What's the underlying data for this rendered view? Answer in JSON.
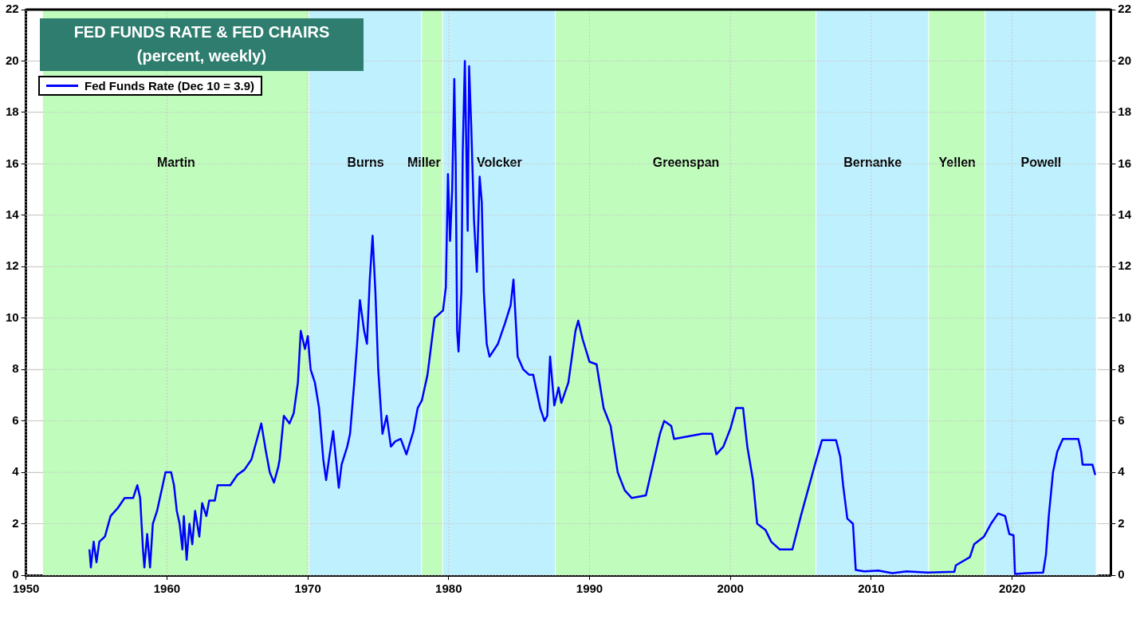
{
  "chart_data": {
    "type": "line",
    "title": "FED FUNDS RATE & FED CHAIRS",
    "subtitle": "(percent, weekly)",
    "xlim": [
      1950,
      2027
    ],
    "xticks": [
      1950,
      1960,
      1970,
      1980,
      1990,
      2000,
      2010,
      2020
    ],
    "ylim": [
      0,
      22
    ],
    "yticks": [
      0,
      2,
      4,
      6,
      8,
      10,
      12,
      14,
      16,
      18,
      20,
      22
    ],
    "y2lim": [
      0,
      22
    ],
    "y2ticks": [
      0,
      2,
      4,
      6,
      8,
      10,
      12,
      14,
      16,
      18,
      20,
      22
    ],
    "grid": true,
    "legend": "top left",
    "marker": "none",
    "line_style": "solid",
    "bands": [
      {
        "axis": "x",
        "from": 1951.2,
        "to": 1970.1,
        "color": "#c0fcbc",
        "label": "Martin"
      },
      {
        "axis": "x",
        "from": 1970.1,
        "to": 1978.1,
        "color": "#bff0fe",
        "label": "Burns"
      },
      {
        "axis": "x",
        "from": 1978.1,
        "to": 1979.6,
        "color": "#c0fcbc",
        "label": "Miller"
      },
      {
        "axis": "x",
        "from": 1979.6,
        "to": 1987.6,
        "color": "#bff0fe",
        "label": "Volcker"
      },
      {
        "axis": "x",
        "from": 1987.6,
        "to": 2006.1,
        "color": "#c0fcbc",
        "label": "Greenspan"
      },
      {
        "axis": "x",
        "from": 2006.1,
        "to": 2014.1,
        "color": "#bff0fe",
        "label": "Bernanke"
      },
      {
        "axis": "x",
        "from": 2014.1,
        "to": 2018.1,
        "color": "#c0fcbc",
        "label": "Yellen"
      },
      {
        "axis": "x",
        "from": 2018.1,
        "to": 2026.0,
        "color": "#bff0fe",
        "label": "Powell"
      }
    ],
    "series": [
      {
        "name": "Fed Funds Rate (Dec 10 = 3.9)",
        "color": "#0000ff",
        "x": [
          1954.5,
          1954.6,
          1954.8,
          1955.0,
          1955.2,
          1955.6,
          1956.0,
          1956.5,
          1957.0,
          1957.6,
          1957.9,
          1958.1,
          1958.3,
          1958.4,
          1958.6,
          1958.8,
          1959.0,
          1959.3,
          1959.7,
          1959.9,
          1960.3,
          1960.5,
          1960.7,
          1960.9,
          1961.1,
          1961.2,
          1961.4,
          1961.6,
          1961.8,
          1962.0,
          1962.3,
          1962.5,
          1962.8,
          1963.0,
          1963.4,
          1963.6,
          1964.5,
          1965.0,
          1965.5,
          1966.0,
          1966.5,
          1966.7,
          1967.0,
          1967.3,
          1967.6,
          1967.9,
          1968.0,
          1968.3,
          1968.7,
          1969.0,
          1969.3,
          1969.5,
          1969.8,
          1970.0,
          1970.2,
          1970.5,
          1970.8,
          1971.1,
          1971.3,
          1971.5,
          1971.8,
          1972.0,
          1972.2,
          1972.4,
          1972.8,
          1973.0,
          1973.3,
          1973.5,
          1973.7,
          1974.0,
          1974.2,
          1974.4,
          1974.6,
          1974.8,
          1975.0,
          1975.3,
          1975.6,
          1975.9,
          1976.2,
          1976.6,
          1977.0,
          1977.5,
          1977.8,
          1978.1,
          1978.5,
          1979.0,
          1979.6,
          1979.8,
          1979.95,
          1980.1,
          1980.25,
          1980.4,
          1980.5,
          1980.6,
          1980.7,
          1980.9,
          1981.0,
          1981.15,
          1981.3,
          1981.35,
          1981.45,
          1981.6,
          1981.8,
          1982.0,
          1982.2,
          1982.35,
          1982.5,
          1982.7,
          1982.9,
          1983.5,
          1984.0,
          1984.4,
          1984.6,
          1984.9,
          1985.3,
          1985.7,
          1986.0,
          1986.5,
          1986.8,
          1987.0,
          1987.2,
          1987.5,
          1987.8,
          1988.0,
          1988.5,
          1989.0,
          1989.2,
          1989.5,
          1990.0,
          1990.5,
          1991.0,
          1991.5,
          1992.0,
          1992.5,
          1993.0,
          1994.0,
          1994.5,
          1995.0,
          1995.3,
          1995.8,
          1996.0,
          1997.0,
          1998.0,
          1998.7,
          1999.0,
          1999.5,
          2000.0,
          2000.4,
          2000.9,
          2001.2,
          2001.6,
          2001.9,
          2002.5,
          2002.9,
          2003.5,
          2004.4,
          2005.0,
          2005.5,
          2006.0,
          2006.5,
          2007.5,
          2007.8,
          2008.0,
          2008.3,
          2008.7,
          2008.9,
          2009.5,
          2010.5,
          2011.5,
          2012.5,
          2014.0,
          2015.9,
          2016.0,
          2017.0,
          2017.3,
          2018.0,
          2018.5,
          2019.0,
          2019.5,
          2019.8,
          2020.1,
          2020.2,
          2021.0,
          2022.2,
          2022.4,
          2022.6,
          2022.9,
          2023.2,
          2023.6,
          2024.7,
          2024.9,
          2025.0,
          2025.7,
          2025.9
        ],
        "values": [
          1.0,
          0.3,
          1.3,
          0.5,
          1.3,
          1.5,
          2.3,
          2.6,
          3.0,
          3.0,
          3.5,
          3.0,
          1.0,
          0.3,
          1.6,
          0.3,
          2.0,
          2.5,
          3.5,
          4.0,
          4.0,
          3.5,
          2.5,
          2.0,
          1.0,
          2.3,
          0.6,
          2.0,
          1.2,
          2.5,
          1.5,
          2.8,
          2.3,
          2.9,
          2.9,
          3.5,
          3.5,
          3.9,
          4.1,
          4.5,
          5.5,
          5.9,
          4.9,
          4.0,
          3.6,
          4.2,
          4.5,
          6.2,
          5.9,
          6.3,
          7.5,
          9.5,
          8.8,
          9.3,
          8.0,
          7.5,
          6.5,
          4.5,
          3.7,
          4.5,
          5.6,
          4.5,
          3.4,
          4.3,
          5.0,
          5.5,
          7.5,
          9.0,
          10.7,
          9.5,
          9.0,
          11.5,
          13.2,
          11.0,
          8.0,
          5.5,
          6.2,
          5.0,
          5.2,
          5.3,
          4.7,
          5.6,
          6.5,
          6.8,
          7.8,
          10.0,
          10.3,
          11.2,
          15.6,
          13.0,
          15.0,
          19.3,
          16.0,
          9.5,
          8.7,
          11.0,
          16.5,
          20.0,
          15.0,
          13.4,
          19.8,
          17.5,
          13.8,
          11.8,
          15.5,
          14.5,
          11.0,
          9.0,
          8.5,
          9.0,
          9.8,
          10.5,
          11.5,
          8.5,
          8.0,
          7.8,
          7.8,
          6.5,
          6.0,
          6.2,
          8.5,
          6.6,
          7.3,
          6.7,
          7.5,
          9.5,
          9.9,
          9.2,
          8.3,
          8.2,
          6.5,
          5.8,
          4.0,
          3.3,
          3.0,
          3.1,
          4.3,
          5.5,
          6.0,
          5.8,
          5.3,
          5.4,
          5.5,
          5.5,
          4.7,
          5.0,
          5.7,
          6.5,
          6.5,
          5.0,
          3.7,
          2.0,
          1.75,
          1.3,
          1.0,
          1.0,
          2.3,
          3.3,
          4.3,
          5.25,
          5.25,
          4.6,
          3.5,
          2.2,
          2.0,
          0.2,
          0.15,
          0.18,
          0.08,
          0.15,
          0.1,
          0.13,
          0.38,
          0.7,
          1.2,
          1.5,
          2.0,
          2.4,
          2.3,
          1.6,
          1.55,
          0.05,
          0.08,
          0.1,
          0.8,
          2.3,
          4.0,
          4.8,
          5.3,
          5.3,
          4.8,
          4.3,
          4.3,
          3.9
        ]
      }
    ]
  }
}
